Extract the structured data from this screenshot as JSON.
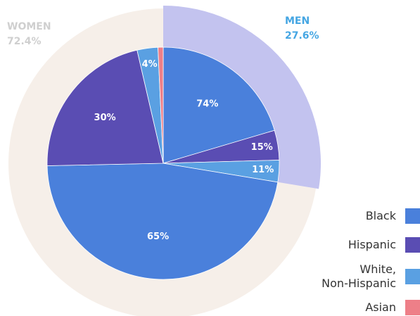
{
  "chart_data": {
    "type": "nested-pie",
    "groups": [
      {
        "name": "MEN",
        "value": 27.6,
        "value_label": "27.6%",
        "color": "#c3c3ef",
        "label_color": "#45a6e3",
        "segments": [
          74,
          15,
          11
        ],
        "segment_labels": [
          "74%",
          "15%",
          "11%"
        ]
      },
      {
        "name": "WOMEN",
        "value": 72.4,
        "value_label": "72.4%",
        "color": "#f6efe9",
        "label_color": "#cfcfcf",
        "segments": [
          65,
          30,
          4,
          1
        ],
        "segment_labels": [
          "65%",
          "30%",
          "4%",
          null
        ]
      }
    ],
    "categories": [
      "Black",
      "Hispanic",
      "White,\nNon-Hispanic",
      "Asian"
    ],
    "colors": [
      "#4a80db",
      "#5a4db3",
      "#5aa0e2",
      "#ee7f88"
    ]
  }
}
